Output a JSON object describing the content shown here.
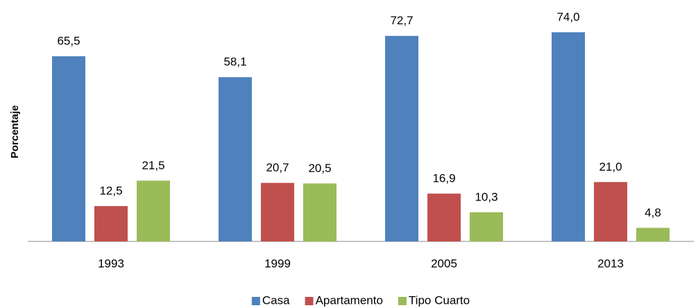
{
  "chart_data": {
    "type": "bar",
    "y_label": "Porcentaje",
    "categories": [
      "1993",
      "1999",
      "2005",
      "2013"
    ],
    "series": [
      {
        "name": "Casa",
        "color": "#4f81bd",
        "values": [
          65.5,
          58.1,
          72.7,
          74.0
        ],
        "value_labels": [
          "65,5",
          "58,1",
          "72,7",
          "74,0"
        ]
      },
      {
        "name": "Apartamento",
        "color": "#c0504d",
        "values": [
          12.5,
          20.7,
          16.9,
          21.0
        ],
        "value_labels": [
          "12,5",
          "20,7",
          "16,9",
          "21,0"
        ]
      },
      {
        "name": "Tipo Cuarto",
        "color": "#9bbb59",
        "values": [
          21.5,
          20.5,
          10.3,
          4.8
        ],
        "value_labels": [
          "21,5",
          "20,5",
          "10,3",
          "4,8"
        ]
      }
    ],
    "ylim": [
      0,
      80
    ],
    "legend": "bottom"
  }
}
